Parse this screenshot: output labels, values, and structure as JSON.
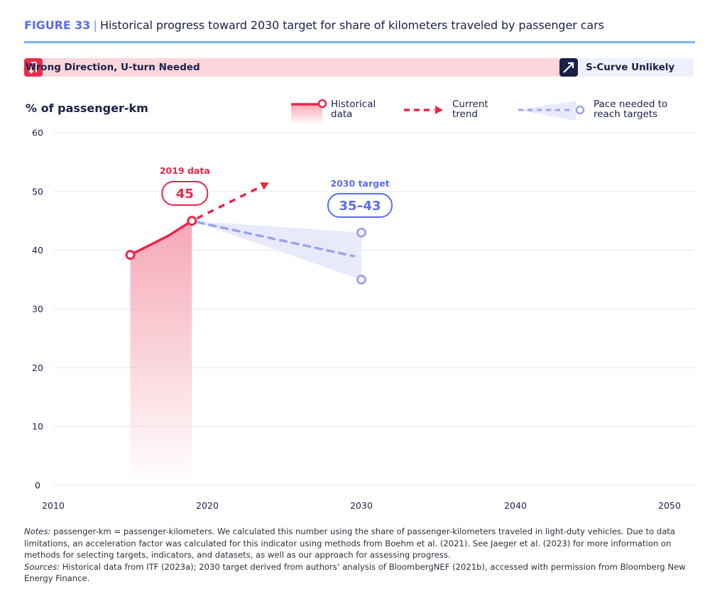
{
  "figure": {
    "number_label": "FIGURE 33",
    "separator": "|",
    "title": "Historical progress toward 2030 target for share of kilometers traveled by passenger cars"
  },
  "status": {
    "left": {
      "icon": "u-turn-arrow-icon",
      "label": "Wrong Direction, U-turn Needed",
      "color": "#ea2c4c",
      "band_color": "#fcd6dd"
    },
    "right": {
      "icon": "diagonal-arrow-icon",
      "label": "S-Curve Unlikely",
      "color": "#1a2147",
      "band_color": "#eef0fb"
    }
  },
  "legend": {
    "historical": "Historical\ndata",
    "current_trend": "Current\ntrend",
    "pace_needed": "Pace needed to\nreach targets"
  },
  "colors": {
    "historical": "#e8274a",
    "historical_fill": "#f5a3b2",
    "trend": "#e8274a",
    "pace": "#9aa4ef",
    "pace_fill": "#e8eafc",
    "target_text": "#5a6cf0",
    "grid": "#e4e5ee",
    "axis_text": "#1a2147"
  },
  "chart_data": {
    "type": "line",
    "title": "Historical progress toward 2030 target for share of kilometers traveled by passenger cars",
    "ylabel": "% of passenger-km",
    "xlabel": "",
    "xlim": [
      2010,
      2050
    ],
    "ylim": [
      0,
      60
    ],
    "x_ticks": [
      2010,
      2020,
      2030,
      2040,
      2050
    ],
    "y_ticks": [
      0,
      10,
      20,
      30,
      40,
      50,
      60
    ],
    "grid": true,
    "legend_position": "top-right",
    "series": [
      {
        "name": "Historical data",
        "style": "solid-with-area",
        "points": [
          [
            2015,
            39.2
          ],
          [
            2017.5,
            42.5
          ],
          [
            2019,
            45
          ]
        ],
        "markers": [
          [
            2015,
            39.2
          ],
          [
            2019,
            45
          ]
        ]
      },
      {
        "name": "Current trend",
        "style": "dashed-arrow",
        "points": [
          [
            2019,
            45
          ],
          [
            2024,
            51.5
          ]
        ]
      },
      {
        "name": "Pace needed to reach targets",
        "style": "dashed-with-cone",
        "points": [
          [
            2019,
            45
          ],
          [
            2029.5,
            39
          ]
        ],
        "cone": {
          "from": [
            2019,
            45
          ],
          "to_upper": [
            2030,
            43
          ],
          "to_lower": [
            2030,
            35
          ]
        },
        "markers": [
          [
            2030,
            43
          ],
          [
            2030,
            35
          ]
        ]
      }
    ],
    "annotations": [
      {
        "label": "2019 data",
        "value": "45",
        "x": 2019,
        "y": 45
      },
      {
        "label": "2030 target",
        "value": "35–43",
        "x": 2030,
        "y": 43
      }
    ]
  },
  "notes": {
    "notes_label": "Notes:",
    "notes_text": " passenger-km = passenger-kilometers. We calculated this number using the share of passenger-kilometers traveled in light-duty vehicles. Due to data limitations, an acceleration factor was calculated for this indicator using methods from Boehm et al. (2021). See Jaeger et al. (2023) for more information on methods for selecting targets, indicators, and datasets, as well as our approach for assessing progress.",
    "sources_label": "Sources:",
    "sources_text": " Historical data from ITF (2023a); 2030 target derived from authors’ analysis of BloombergNEF (2021b), accessed with permission from Bloomberg New Energy Finance."
  }
}
